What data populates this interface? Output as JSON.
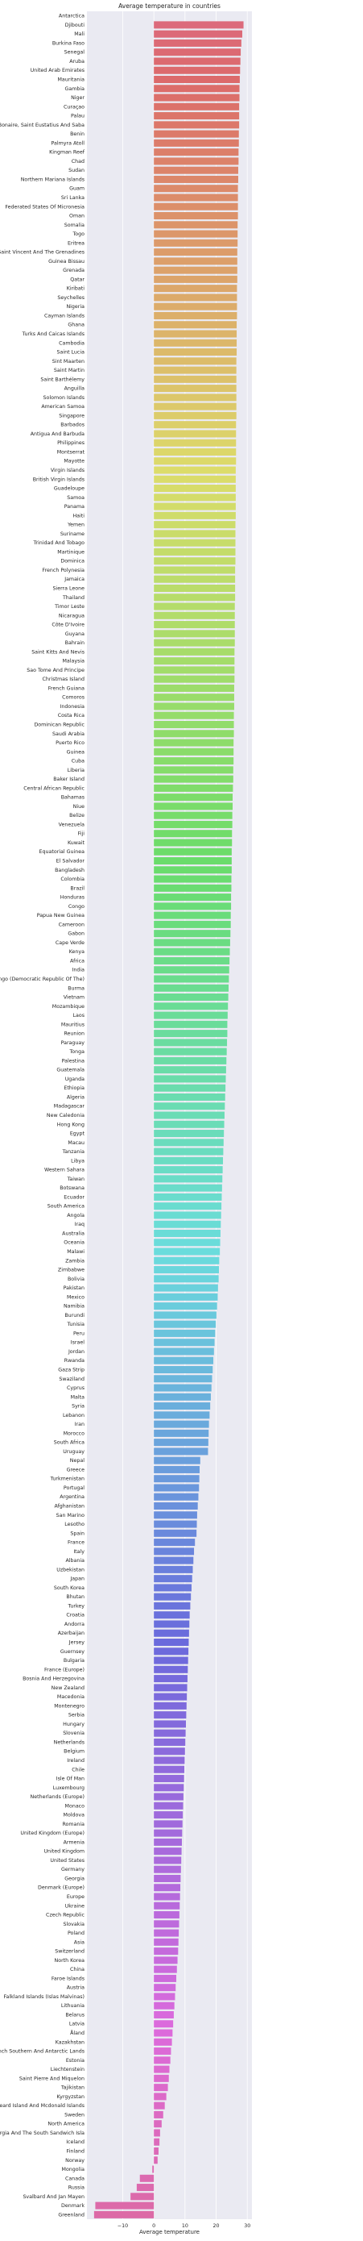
{
  "chart_data": {
    "type": "bar",
    "orientation": "horizontal",
    "title": "Average temperature in countries",
    "xlabel": "Average temperature",
    "categories": [
      "Antarctica",
      "Djibouti",
      "Mali",
      "Burkina Faso",
      "Senegal",
      "Aruba",
      "United Arab Emirates",
      "Mauritania",
      "Gambia",
      "Niger",
      "Curaçao",
      "Palau",
      "Bonaire, Saint Eustatius And Saba",
      "Benin",
      "Palmyra Atoll",
      "Kingman Reef",
      "Chad",
      "Sudan",
      "Northern Mariana Islands",
      "Guam",
      "Sri Lanka",
      "Federated States Of Micronesia",
      "Oman",
      "Somalia",
      "Togo",
      "Eritrea",
      "Saint Vincent And The Grenadines",
      "Guinea Bissau",
      "Grenada",
      "Qatar",
      "Kiribati",
      "Seychelles",
      "Nigeria",
      "Cayman Islands",
      "Ghana",
      "Turks And Caicas Islands",
      "Cambodia",
      "Saint Lucia",
      "Sint Maarten",
      "Saint Martin",
      "Saint Barthélemy",
      "Anguilla",
      "Solomon Islands",
      "American Samoa",
      "Singapore",
      "Barbados",
      "Antigua And Barbuda",
      "Philippines",
      "Montserrat",
      "Mayotte",
      "Virgin Islands",
      "British Virgin Islands",
      "Guadeloupe",
      "Samoa",
      "Panama",
      "Haiti",
      "Yemen",
      "Suriname",
      "Trinidad And Tobago",
      "Martinique",
      "Dominica",
      "French Polynesia",
      "Jamaica",
      "Sierra Leone",
      "Thailand",
      "Timor Leste",
      "Nicaragua",
      "Côte D'Ivoire",
      "Guyana",
      "Bahrain",
      "Saint Kitts And Nevis",
      "Malaysia",
      "Sao Tome And Principe",
      "Christmas Island",
      "French Guiana",
      "Comoros",
      "Indonesia",
      "Costa Rica",
      "Dominican Republic",
      "Saudi Arabia",
      "Puerto Rico",
      "Guinea",
      "Cuba",
      "Liberia",
      "Baker Island",
      "Central African Republic",
      "Bahamas",
      "Niue",
      "Belize",
      "Venezuela",
      "Fiji",
      "Kuwait",
      "Equatorial Guinea",
      "El Salvador",
      "Bangladesh",
      "Colombia",
      "Brazil",
      "Honduras",
      "Congo",
      "Papua New Guinea",
      "Cameroon",
      "Gabon",
      "Cape Verde",
      "Kenya",
      "Africa",
      "India",
      "Congo (Democratic Republic Of The)",
      "Burma",
      "Vietnam",
      "Mozambique",
      "Laos",
      "Mauritius",
      "Reunion",
      "Paraguay",
      "Tonga",
      "Palestina",
      "Guatemala",
      "Uganda",
      "Ethiopia",
      "Algeria",
      "Madagascar",
      "New Caledonia",
      "Hong Kong",
      "Egypt",
      "Macau",
      "Tanzania",
      "Libya",
      "Western Sahara",
      "Taiwan",
      "Botswana",
      "Ecuador",
      "South America",
      "Angola",
      "Iraq",
      "Australia",
      "Oceania",
      "Malawi",
      "Zambia",
      "Zimbabwe",
      "Bolivia",
      "Pakistan",
      "Mexico",
      "Namibia",
      "Burundi",
      "Tunisia",
      "Peru",
      "Israel",
      "Jordan",
      "Rwanda",
      "Gaza Strip",
      "Swaziland",
      "Cyprus",
      "Malta",
      "Syria",
      "Lebanon",
      "Iran",
      "Morocco",
      "South Africa",
      "Uruguay",
      "Nepal",
      "Greece",
      "Turkmenistan",
      "Portugal",
      "Argentina",
      "Afghanistan",
      "San Marino",
      "Lesotho",
      "Spain",
      "France",
      "Italy",
      "Albania",
      "Uzbekistan",
      "Japan",
      "South Korea",
      "Bhutan",
      "Turkey",
      "Croatia",
      "Andorra",
      "Azerbaijan",
      "Jersey",
      "Guernsey",
      "Bulgaria",
      "France (Europe)",
      "Bosnia And Herzegovina",
      "New Zealand",
      "Macedonia",
      "Montenegro",
      "Serbia",
      "Hungary",
      "Slovenia",
      "Netherlands",
      "Belgium",
      "Ireland",
      "Chile",
      "Isle Of Man",
      "Luxembourg",
      "Netherlands (Europe)",
      "Monaco",
      "Moldova",
      "Romania",
      "United Kingdom (Europe)",
      "Armenia",
      "United Kingdom",
      "United States",
      "Germany",
      "Georgia",
      "Denmark (Europe)",
      "Europe",
      "Ukraine",
      "Czech Republic",
      "Slovakia",
      "Poland",
      "Asia",
      "Switzerland",
      "North Korea",
      "China",
      "Faroe Islands",
      "Austria",
      "Falkland Islands (Islas Malvinas)",
      "Lithuania",
      "Belarus",
      "Latvia",
      "Åland",
      "Kazakhstan",
      "French Southern And Antarctic Lands",
      "Estonia",
      "Liechtenstein",
      "Saint Pierre And Miquelon",
      "Tajikistan",
      "Kyrgyzstan",
      "Heard Island And Mcdonald Islands",
      "Sweden",
      "North America",
      "South Georgia And The South Sandwich Isla",
      "Iceland",
      "Finland",
      "Norway",
      "Mongolia",
      "Canada",
      "Russia",
      "Svalbard And Jan Mayen",
      "Denmark",
      "Greenland"
    ],
    "values": [
      null,
      28.8,
      28.4,
      28.1,
      27.9,
      27.8,
      27.7,
      27.6,
      27.5,
      27.5,
      27.4,
      27.4,
      27.4,
      27.3,
      27.3,
      27.2,
      27.2,
      27.1,
      27.1,
      27.0,
      27.0,
      27.0,
      27.0,
      26.9,
      26.9,
      26.9,
      26.8,
      26.8,
      26.8,
      26.8,
      26.7,
      26.7,
      26.7,
      26.7,
      26.6,
      26.6,
      26.6,
      26.6,
      26.5,
      26.5,
      26.5,
      26.5,
      26.5,
      26.5,
      26.5,
      26.4,
      26.4,
      26.4,
      26.4,
      26.4,
      26.3,
      26.3,
      26.3,
      26.3,
      26.3,
      26.3,
      26.2,
      26.2,
      26.2,
      26.2,
      26.2,
      26.1,
      26.1,
      26.1,
      26.1,
      26.0,
      26.0,
      26.0,
      26.0,
      26.0,
      25.9,
      25.9,
      25.9,
      25.9,
      25.8,
      25.8,
      25.8,
      25.7,
      25.7,
      25.7,
      25.6,
      25.6,
      25.6,
      25.5,
      25.5,
      25.4,
      25.3,
      25.3,
      25.2,
      25.2,
      25.1,
      25.1,
      25.0,
      25.0,
      25.0,
      24.9,
      24.9,
      24.8,
      24.8,
      24.7,
      24.7,
      24.6,
      24.5,
      24.4,
      24.3,
      24.2,
      24.1,
      24.0,
      23.9,
      23.8,
      23.7,
      23.6,
      23.6,
      23.5,
      23.4,
      23.3,
      23.2,
      23.1,
      23.0,
      22.9,
      22.8,
      22.7,
      22.6,
      22.5,
      22.4,
      22.3,
      22.2,
      22.1,
      22.0,
      21.9,
      21.8,
      21.7,
      21.6,
      21.5,
      21.4,
      21.3,
      21.2,
      21.0,
      20.9,
      20.8,
      20.6,
      20.5,
      20.3,
      20.1,
      19.9,
      19.7,
      19.5,
      19.3,
      19.1,
      18.9,
      18.7,
      18.5,
      18.3,
      18.1,
      17.9,
      17.7,
      17.6,
      17.5,
      17.4,
      14.9,
      14.7,
      14.6,
      14.5,
      14.3,
      14.1,
      13.9,
      13.8,
      13.7,
      13.2,
      12.9,
      12.7,
      12.5,
      12.3,
      12.1,
      11.9,
      11.7,
      11.5,
      11.4,
      11.3,
      11.2,
      11.1,
      11.0,
      10.9,
      10.8,
      10.7,
      10.6,
      10.5,
      10.4,
      10.3,
      10.2,
      10.1,
      10.0,
      9.9,
      9.8,
      9.7,
      9.6,
      9.5,
      9.4,
      9.3,
      9.2,
      9.1,
      9.0,
      8.9,
      8.8,
      8.7,
      8.6,
      8.5,
      8.4,
      8.3,
      8.2,
      8.1,
      8.0,
      7.9,
      7.8,
      7.6,
      7.4,
      7.2,
      7.0,
      6.8,
      6.6,
      6.4,
      6.2,
      6.0,
      5.8,
      5.5,
      5.3,
      5.0,
      4.8,
      4.5,
      4.0,
      3.5,
      3.0,
      2.5,
      2.0,
      1.8,
      1.5,
      1.2,
      -0.5,
      -4.5,
      -5.5,
      -7.5,
      -18.8,
      -19.2
    ],
    "xlim": [
      -21.5,
      31.5
    ],
    "xticks": [
      {
        "value": -10,
        "label": "−10"
      },
      0,
      10,
      20,
      30
    ],
    "grid": true,
    "palette": "husl"
  }
}
